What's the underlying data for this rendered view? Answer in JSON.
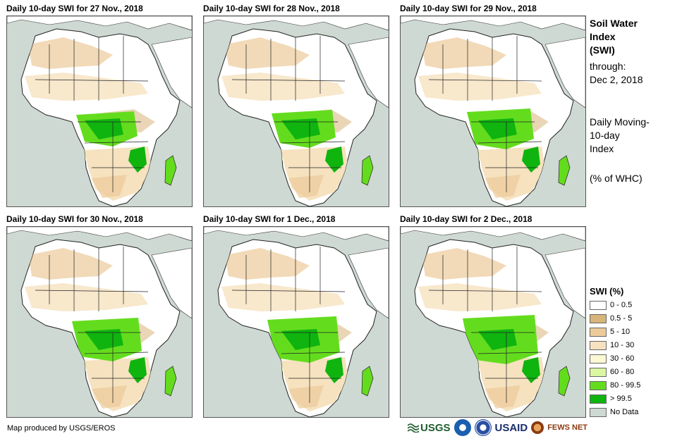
{
  "panels": [
    {
      "title": "Daily 10-day SWI for 27 Nov., 2018"
    },
    {
      "title": "Daily 10-day SWI for 28 Nov., 2018"
    },
    {
      "title": "Daily 10-day SWI for 29 Nov., 2018"
    },
    {
      "title": "Daily 10-day SWI for 30 Nov., 2018"
    },
    {
      "title": "Daily 10-day SWI for 1 Dec., 2018"
    },
    {
      "title": "Daily 10-day SWI for 2 Dec., 2018"
    }
  ],
  "sidebar": {
    "title_line1": "Soil Water",
    "title_line2": "Index",
    "title_line3": "(SWI)",
    "through_label": "through:",
    "through_date": "Dec 2, 2018",
    "desc_line1": "Daily Moving-",
    "desc_line2": "10-day",
    "desc_line3": "Index",
    "unit": "(% of WHC)"
  },
  "legend": {
    "title": "SWI (%)",
    "items": [
      {
        "label": "0 - 0.5",
        "color": "#ffffff"
      },
      {
        "label": "0.5 - 5",
        "color": "#d8b57a"
      },
      {
        "label": "5 - 10",
        "color": "#eccb9a"
      },
      {
        "label": "10 - 30",
        "color": "#f6e2bf"
      },
      {
        "label": "30 - 60",
        "color": "#fbf8d2"
      },
      {
        "label": "60 - 80",
        "color": "#dcf7a2"
      },
      {
        "label": "80 - 99.5",
        "color": "#64dc1e"
      },
      {
        "label": "> 99.5",
        "color": "#0fb40f"
      },
      {
        "label": "No Data",
        "color": "#cfd9d3"
      }
    ]
  },
  "footer": {
    "credit": "Map produced by USGS/EROS",
    "logo_usgs": "USGS",
    "logo_usaid": "USAID",
    "logo_fews": "FEWS NET"
  }
}
